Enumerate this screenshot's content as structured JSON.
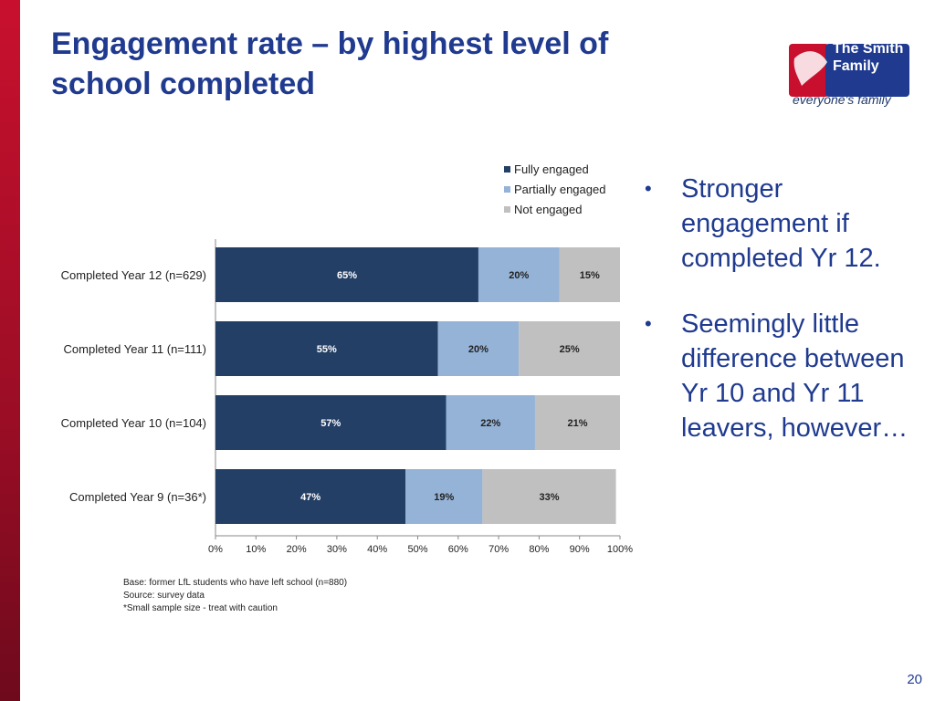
{
  "slide": {
    "title": "Engagement rate – by highest level of school completed",
    "page_number": "20"
  },
  "logo": {
    "name": "The Smith Family",
    "tagline": "everyone's family"
  },
  "bullets": [
    "Stronger engagement if completed Yr 12.",
    "Seemingly little difference between Yr 10 and Yr 11 leavers, however…"
  ],
  "notes": [
    "Base: former LfL students who have left school (n=880)",
    "Source: survey data",
    "*Small sample size - treat with caution"
  ],
  "colors": {
    "accent": "#1f3a8f",
    "brand_red": "#c8102e",
    "fully": "#243f66",
    "partially": "#95b3d7",
    "not": "#c0c0c0"
  },
  "chart_data": {
    "type": "bar",
    "orientation": "horizontal",
    "stacked": true,
    "percent": true,
    "categories": [
      "Completed Year 12 (n=629)",
      "Completed Year 11 (n=111)",
      "Completed Year 10 (n=104)",
      "Completed Year 9 (n=36*)"
    ],
    "series": [
      {
        "name": "Fully engaged",
        "values": [
          65,
          55,
          57,
          47
        ],
        "color": "#243f66",
        "label_color": "#ffffff"
      },
      {
        "name": "Partially engaged",
        "values": [
          20,
          20,
          22,
          19
        ],
        "color": "#95b3d7",
        "label_color": "#222222"
      },
      {
        "name": "Not engaged",
        "values": [
          15,
          25,
          21,
          33
        ],
        "color": "#c0c0c0",
        "label_color": "#222222"
      }
    ],
    "xlim": [
      0,
      100
    ],
    "xticks": [
      "0%",
      "10%",
      "20%",
      "30%",
      "40%",
      "50%",
      "60%",
      "70%",
      "80%",
      "90%",
      "100%"
    ],
    "legend": "top-right",
    "grid": false
  }
}
